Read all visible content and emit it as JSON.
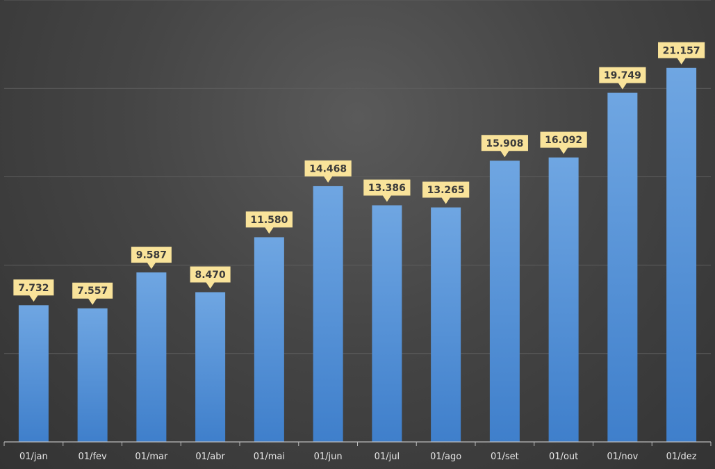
{
  "chart_data": {
    "type": "bar",
    "title": "",
    "xlabel": "",
    "ylabel": "",
    "categories": [
      "01/jan",
      "01/fev",
      "01/mar",
      "01/abr",
      "01/mai",
      "01/jun",
      "01/jul",
      "01/ago",
      "01/set",
      "01/out",
      "01/nov",
      "01/dez"
    ],
    "values": [
      7732,
      7557,
      9587,
      8470,
      11580,
      14468,
      13386,
      13265,
      15908,
      16092,
      19749,
      21157
    ],
    "value_labels": [
      "7.732",
      "7.557",
      "9.587",
      "8.470",
      "11.580",
      "14.468",
      "13.386",
      "13.265",
      "15.908",
      "16.092",
      "19.749",
      "21.157"
    ],
    "ylim": [
      0,
      25000
    ],
    "y_gridlines": [
      5000,
      10000,
      15000,
      20000,
      25000
    ],
    "grid": true,
    "legend": "none",
    "colors": {
      "bar_top": "#6fa6e2",
      "bar_bottom": "#3f7fcb",
      "label_bg": "#f9e39a",
      "label_text": "#3a3a3a",
      "tick_text": "#e6e6e6",
      "gridline": "#5e5e5e",
      "axis": "#bcbcbc"
    }
  }
}
